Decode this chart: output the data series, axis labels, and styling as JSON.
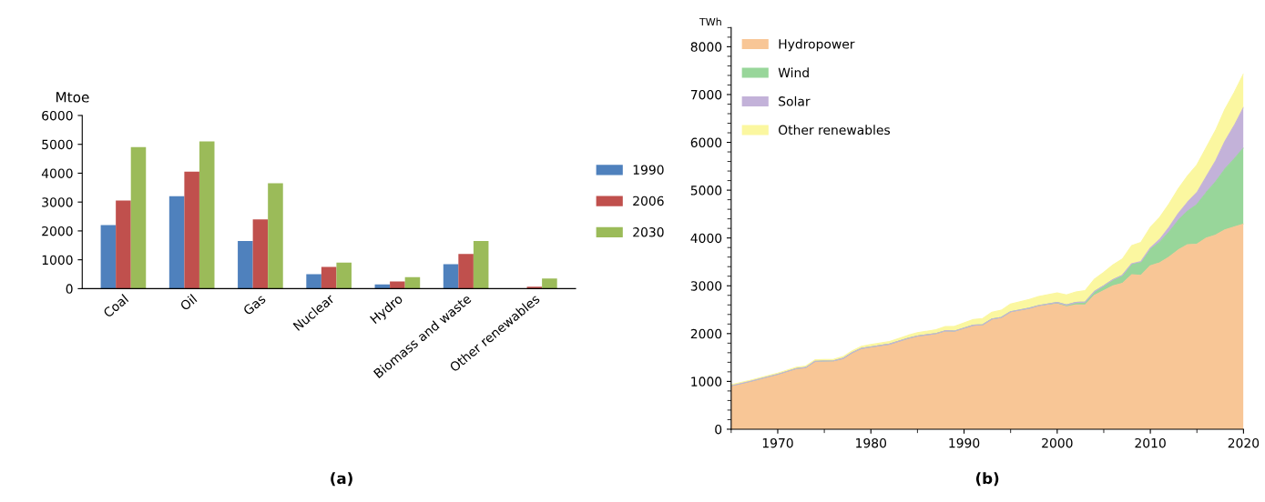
{
  "chart_data": [
    {
      "type": "bar",
      "ylabel": "Mtoe",
      "categories": [
        "Coal",
        "Oil",
        "Gas",
        "Nuclear",
        "Hydro",
        "Biomass and waste",
        "Other renewables"
      ],
      "series": [
        {
          "name": "1990",
          "color": "#4f81bd",
          "values": [
            2200,
            3200,
            1650,
            500,
            150,
            850,
            0
          ]
        },
        {
          "name": "2006",
          "color": "#c0504d",
          "values": [
            3050,
            4050,
            2400,
            750,
            250,
            1200,
            70
          ]
        },
        {
          "name": "2030",
          "color": "#9bbb59",
          "values": [
            4900,
            5100,
            3650,
            900,
            400,
            1650,
            350
          ]
        }
      ],
      "ylim": [
        0,
        6000
      ],
      "yticks": [
        0,
        1000,
        2000,
        3000,
        4000,
        5000,
        6000
      ],
      "grid": false,
      "legend": "right",
      "annotations": [
        "(a)"
      ]
    },
    {
      "type": "area",
      "stacked": true,
      "ylabel": "TWh",
      "x": [
        1965,
        1967,
        1970,
        1972,
        1973,
        1974,
        1976,
        1977,
        1978,
        1979,
        1980,
        1982,
        1984,
        1985,
        1987,
        1988,
        1989,
        1990,
        1991,
        1992,
        1993,
        1994,
        1995,
        1997,
        1998,
        2000,
        2001,
        2002,
        2003,
        2004,
        2005,
        2006,
        2007,
        2008,
        2009,
        2010,
        2011,
        2012,
        2013,
        2014,
        2015,
        2016,
        2017,
        2018,
        2019,
        2020
      ],
      "series": [
        {
          "name": "Hydropower",
          "color": "#f8c696",
          "values": [
            910,
            1000,
            1150,
            1270,
            1290,
            1420,
            1430,
            1480,
            1600,
            1690,
            1720,
            1780,
            1900,
            1950,
            2000,
            2060,
            2050,
            2110,
            2170,
            2180,
            2300,
            2330,
            2450,
            2520,
            2570,
            2620,
            2560,
            2600,
            2600,
            2800,
            2900,
            3000,
            3050,
            3230,
            3220,
            3420,
            3480,
            3600,
            3750,
            3860,
            3870,
            4000,
            4060,
            4170,
            4230,
            4290
          ]
        },
        {
          "name": "Wind",
          "color": "#98d69a",
          "values": [
            0,
            0,
            0,
            0,
            0,
            0,
            0,
            0,
            0,
            0,
            0,
            0,
            0,
            0,
            0,
            0,
            2,
            4,
            5,
            6,
            7,
            8,
            9,
            12,
            16,
            30,
            38,
            50,
            60,
            80,
            100,
            130,
            170,
            220,
            270,
            340,
            430,
            520,
            620,
            700,
            830,
            950,
            1110,
            1270,
            1420,
            1590
          ]
        },
        {
          "name": "Solar",
          "color": "#c3b2d9",
          "values": [
            0,
            0,
            0,
            0,
            0,
            0,
            0,
            0,
            0,
            0,
            0,
            0,
            0,
            0,
            0,
            0,
            0,
            0,
            0,
            0,
            0,
            0,
            0,
            0,
            0,
            0,
            0,
            0,
            0,
            0,
            0,
            0,
            0,
            12,
            20,
            32,
            60,
            100,
            140,
            190,
            250,
            330,
            440,
            580,
            700,
            850
          ]
        },
        {
          "name": "Other renewables",
          "color": "#fbf7a0",
          "values": [
            20,
            22,
            25,
            28,
            30,
            32,
            35,
            38,
            40,
            45,
            50,
            55,
            65,
            70,
            80,
            90,
            100,
            110,
            120,
            130,
            140,
            150,
            160,
            180,
            190,
            200,
            210,
            220,
            240,
            260,
            280,
            310,
            340,
            380,
            400,
            430,
            460,
            490,
            520,
            550,
            580,
            610,
            640,
            670,
            690,
            700
          ]
        }
      ],
      "xlim": [
        1965,
        2020
      ],
      "xticks": [
        1970,
        1980,
        1990,
        2000,
        2010,
        2020
      ],
      "ylim": [
        0,
        8400
      ],
      "yticks": [
        0,
        1000,
        2000,
        3000,
        4000,
        5000,
        6000,
        7000,
        8000
      ],
      "grid": false,
      "legend": "top left",
      "annotations": [
        "(b)"
      ]
    }
  ]
}
